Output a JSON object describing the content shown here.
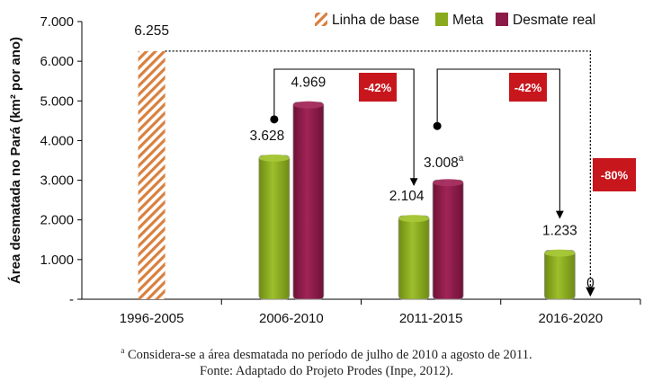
{
  "chart_data": {
    "type": "bar",
    "ylabel": "Área desmatada no Pará (km² por ano)",
    "ylim": [
      0,
      7000
    ],
    "yticks": [
      {
        "value": 0,
        "label": "-"
      },
      {
        "value": 1000,
        "label": "1.000"
      },
      {
        "value": 2000,
        "label": "2.000"
      },
      {
        "value": 3000,
        "label": "3.000"
      },
      {
        "value": 4000,
        "label": "4.000"
      },
      {
        "value": 5000,
        "label": "5.000"
      },
      {
        "value": 6000,
        "label": "6.000"
      },
      {
        "value": 7000,
        "label": "7.000"
      }
    ],
    "categories": [
      "1996-2005",
      "2006-2010",
      "2011-2015",
      "2016-2020"
    ],
    "legend_position": "top-right",
    "series": [
      {
        "name": "Linha de base",
        "color": "#d9803f",
        "pattern": "hatched",
        "values": [
          6255,
          null,
          null,
          null
        ],
        "labels": [
          "6.255",
          "",
          "",
          ""
        ]
      },
      {
        "name": "Meta",
        "color": "#8aaa1d",
        "values": [
          null,
          3628,
          2104,
          1233
        ],
        "labels": [
          "",
          "3.628",
          "2.104",
          "1.233"
        ]
      },
      {
        "name": "Desmate real",
        "color": "#8c1a48",
        "values": [
          null,
          4969,
          3008,
          0
        ],
        "labels": [
          "",
          "4.969",
          "3.008",
          "0"
        ],
        "label_superscripts": [
          "",
          "",
          "a",
          ""
        ]
      }
    ],
    "annotations": [
      {
        "text": "-42%",
        "from": "2006-2010",
        "to": "2011-2015",
        "color": "#c8161d"
      },
      {
        "text": "-42%",
        "from": "2011-2015",
        "to": "2016-2020",
        "color": "#c8161d"
      },
      {
        "text": "-80%",
        "from": "1996-2005",
        "to": "2016-2020",
        "color": "#c8161d"
      }
    ]
  },
  "footnote": {
    "marker": "a",
    "text": " Considera-se a área desmatada no período de julho de 2010 a agosto de 2011.",
    "source": "Fonte: Adaptado do Projeto Prodes (Inpe, 2012)."
  }
}
